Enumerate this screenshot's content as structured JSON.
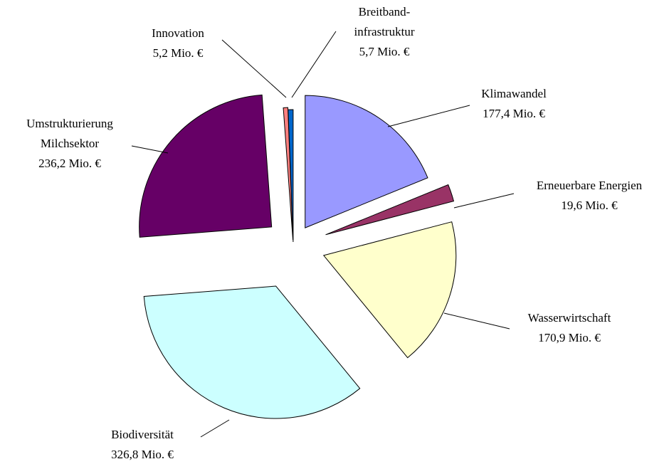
{
  "chart_data": {
    "type": "pie",
    "categories": [
      [
        "Klimawandel"
      ],
      [
        "Erneuerbare Energien"
      ],
      [
        "Wasserwirtschaft"
      ],
      [
        "Biodiversität"
      ],
      [
        "Umstrukturierung",
        "Milchsektor"
      ],
      [
        "Innovation"
      ],
      [
        "Breitband-",
        "infrastruktur"
      ]
    ],
    "values": [
      177.4,
      19.6,
      170.9,
      326.8,
      236.2,
      5.2,
      5.7
    ],
    "value_labels": [
      "177,4 Mio. €",
      "19,6 Mio. €",
      "170,9 Mio. €",
      "326,8 Mio. €",
      "236,2 Mio. €",
      "5,2 Mio. €",
      "5,7 Mio. €"
    ],
    "colors": [
      "#9999ff",
      "#993366",
      "#ffffcc",
      "#ccffff",
      "#660066",
      "#ff8080",
      "#0066cc"
    ],
    "exploded": true
  }
}
